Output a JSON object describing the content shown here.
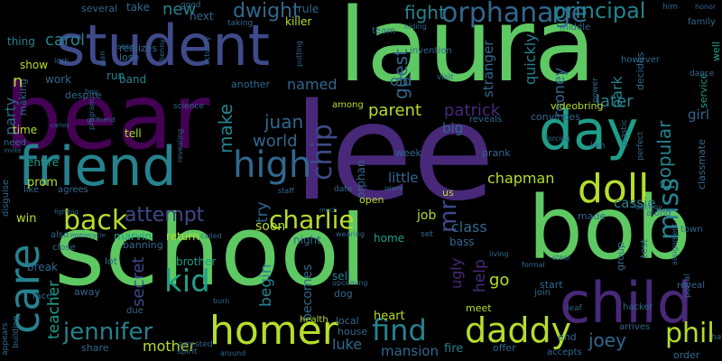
{
  "palette": {
    "green": "#5ec962",
    "purple": "#482878",
    "indigo": "#3e4a89",
    "blue": "#31688e",
    "teal": "#26828e",
    "aqua": "#1f9e89",
    "lime": "#b5de2b",
    "yellow": "#fde725",
    "mint": "#6ece58",
    "grape": "#440154"
  },
  "words": [
    {
      "text": "school",
      "color": "#5ec962"
    },
    {
      "text": "lee",
      "color": "#482878"
    },
    {
      "text": "laura",
      "color": "#5ec962"
    },
    {
      "text": "bear",
      "color": "#440154"
    },
    {
      "text": "student",
      "color": "#3e4a89"
    },
    {
      "text": "bob",
      "color": "#5ec962"
    },
    {
      "text": "friend",
      "color": "#26828e"
    },
    {
      "text": "day",
      "color": "#1f9e89"
    },
    {
      "text": "child",
      "color": "#482878"
    },
    {
      "text": "homer",
      "color": "#b5de2b"
    },
    {
      "text": "care",
      "color": "#26828e"
    },
    {
      "text": "doll",
      "color": "#b5de2b"
    },
    {
      "text": "daddy",
      "color": "#b5de2b"
    },
    {
      "text": "high",
      "color": "#31688e"
    },
    {
      "text": "back",
      "color": "#b5de2b"
    },
    {
      "text": "jennifer",
      "color": "#26828e"
    },
    {
      "text": "charlie",
      "color": "#b5de2b"
    },
    {
      "text": "find",
      "color": "#26828e"
    },
    {
      "text": "phil",
      "color": "#b5de2b"
    },
    {
      "text": "chip",
      "color": "#3e4a89"
    },
    {
      "text": "kid",
      "color": "#1f9e89"
    },
    {
      "text": "miss",
      "color": "#26828e"
    },
    {
      "text": "orphanage",
      "color": "#31688e"
    },
    {
      "text": "attempt",
      "color": "#3e4a89"
    },
    {
      "text": "mr",
      "color": "#3e4a89"
    },
    {
      "text": "principal",
      "color": "#26828e"
    },
    {
      "text": "dwight",
      "color": "#31688e"
    },
    {
      "text": "fight",
      "color": "#26828e"
    },
    {
      "text": "world",
      "color": "#31688e"
    },
    {
      "text": "joey",
      "color": "#31688e"
    },
    {
      "text": "make",
      "color": "#26828e"
    },
    {
      "text": "popular",
      "color": "#26828e"
    },
    {
      "text": "guest",
      "color": "#31688e"
    },
    {
      "text": "juan",
      "color": "#31688e"
    },
    {
      "text": "new",
      "color": "#26828e"
    },
    {
      "text": "carol",
      "color": "#26828e"
    },
    {
      "text": "teacher",
      "color": "#1f9e89"
    },
    {
      "text": "patrick",
      "color": "#482878"
    },
    {
      "text": "parent",
      "color": "#b5de2b"
    },
    {
      "text": "later",
      "color": "#26828e"
    },
    {
      "text": "party",
      "color": "#31688e"
    },
    {
      "text": "secret",
      "color": "#3e4a89"
    },
    {
      "text": "named",
      "color": "#31688e"
    },
    {
      "text": "go",
      "color": "#b5de2b"
    },
    {
      "text": "chapman",
      "color": "#b5de2b"
    },
    {
      "text": "begin",
      "color": "#26828e"
    },
    {
      "text": "try",
      "color": "#31688e"
    },
    {
      "text": "help",
      "color": "#482878"
    },
    {
      "text": "luke",
      "color": "#31688e"
    },
    {
      "text": "mother",
      "color": "#b5de2b"
    },
    {
      "text": "quickly",
      "color": "#26828e"
    },
    {
      "text": "ugly",
      "color": "#482878"
    },
    {
      "text": "park",
      "color": "#26828e"
    },
    {
      "text": "rooney",
      "color": "#31688e"
    },
    {
      "text": "class",
      "color": "#31688e"
    },
    {
      "text": "old",
      "color": "#31688e"
    },
    {
      "text": "stranger",
      "color": "#31688e"
    },
    {
      "text": "little",
      "color": "#31688e"
    },
    {
      "text": "big",
      "color": "#31688e"
    },
    {
      "text": "girl",
      "color": "#31688e"
    },
    {
      "text": "cassie",
      "color": "#26828e"
    },
    {
      "text": "heart",
      "color": "#b5de2b"
    },
    {
      "text": "fire",
      "color": "#26828e"
    },
    {
      "text": "becomes",
      "color": "#31688e"
    },
    {
      "text": "mansion",
      "color": "#31688e"
    },
    {
      "text": "job",
      "color": "#b5de2b"
    },
    {
      "text": "soon",
      "color": "#b5de2b"
    },
    {
      "text": "marvin",
      "color": "#1f9e89"
    },
    {
      "text": "return",
      "color": "#b5de2b"
    },
    {
      "text": "tell",
      "color": "#b5de2b"
    },
    {
      "text": "brother",
      "color": "#1f9e89"
    },
    {
      "text": "sell",
      "color": "#26828e"
    },
    {
      "text": "bass",
      "color": "#31688e"
    },
    {
      "text": "home",
      "color": "#1f9e89"
    },
    {
      "text": "show",
      "color": "#b5de2b"
    },
    {
      "text": "work",
      "color": "#31688e"
    },
    {
      "text": "entire",
      "color": "#1f9e89"
    },
    {
      "text": "prom",
      "color": "#b5de2b"
    },
    {
      "text": "win",
      "color": "#b5de2b"
    },
    {
      "text": "break",
      "color": "#31688e"
    },
    {
      "text": "take",
      "color": "#31688e"
    },
    {
      "text": "next",
      "color": "#31688e"
    },
    {
      "text": "rule",
      "color": "#31688e"
    },
    {
      "text": "killer",
      "color": "#b5de2b"
    },
    {
      "text": "band",
      "color": "#26828e"
    },
    {
      "text": "run",
      "color": "#26828e"
    },
    {
      "text": "another",
      "color": "#31688e"
    },
    {
      "text": "thing",
      "color": "#26828e"
    },
    {
      "text": "time",
      "color": "#b5de2b"
    },
    {
      "text": "making",
      "color": "#31688e"
    },
    {
      "text": "banning",
      "color": "#31688e"
    },
    {
      "text": "lot",
      "color": "#31688e"
    },
    {
      "text": "away",
      "color": "#31688e"
    },
    {
      "text": "share",
      "color": "#31688e"
    },
    {
      "text": "local",
      "color": "#31688e"
    },
    {
      "text": "start",
      "color": "#31688e"
    },
    {
      "text": "end",
      "color": "#31688e"
    },
    {
      "text": "classmate",
      "color": "#31688e"
    },
    {
      "text": "service",
      "color": "#1f9e89"
    },
    {
      "text": "well",
      "color": "#1f9e89"
    },
    {
      "text": "decides",
      "color": "#31688e"
    },
    {
      "text": "offer",
      "color": "#31688e"
    },
    {
      "text": "meet",
      "color": "#b5de2b"
    },
    {
      "text": "order",
      "color": "#31688e"
    },
    {
      "text": "reveal",
      "color": "#31688e"
    },
    {
      "text": "made",
      "color": "#31688e"
    },
    {
      "text": "group",
      "color": "#31688e"
    },
    {
      "text": "test",
      "color": "#31688e"
    },
    {
      "text": "us",
      "color": "#b5de2b"
    },
    {
      "text": "orphan",
      "color": "#31688e"
    },
    {
      "text": "night",
      "color": "#31688e"
    },
    {
      "text": "dog",
      "color": "#31688e"
    },
    {
      "text": "house",
      "color": "#31688e"
    },
    {
      "text": "health",
      "color": "#b5de2b"
    },
    {
      "text": "open",
      "color": "#b5de2b"
    },
    {
      "text": "week",
      "color": "#31688e"
    },
    {
      "text": "prank",
      "color": "#31688e"
    },
    {
      "text": "video",
      "color": "#b5de2b"
    },
    {
      "text": "bring",
      "color": "#b5de2b"
    },
    {
      "text": "convinces",
      "color": "#31688e"
    },
    {
      "text": "reveals",
      "color": "#31688e"
    },
    {
      "text": "among",
      "color": "#b5de2b"
    },
    {
      "text": "lose",
      "color": "#31688e"
    },
    {
      "text": "realizes",
      "color": "#31688e"
    },
    {
      "text": "several",
      "color": "#31688e"
    },
    {
      "text": "despite",
      "color": "#31688e"
    },
    {
      "text": "invention",
      "color": "#31688e"
    },
    {
      "text": "team",
      "color": "#31688e"
    },
    {
      "text": "however",
      "color": "#31688e"
    },
    {
      "text": "middle",
      "color": "#31688e"
    },
    {
      "text": "family",
      "color": "#31688e"
    },
    {
      "text": "hacker",
      "color": "#31688e"
    },
    {
      "text": "accepts",
      "color": "#31688e"
    },
    {
      "text": "arrives",
      "color": "#31688e"
    },
    {
      "text": "along",
      "color": "#31688e"
    },
    {
      "text": "town",
      "color": "#31688e"
    },
    {
      "text": "join",
      "color": "#31688e"
    },
    {
      "text": "n",
      "color": "#b5de2b"
    },
    {
      "text": "close",
      "color": "#31688e"
    },
    {
      "text": "like",
      "color": "#31688e"
    },
    {
      "text": "need",
      "color": "#31688e"
    },
    {
      "text": "agrees",
      "color": "#31688e"
    },
    {
      "text": "disguise",
      "color": "#31688e"
    },
    {
      "text": "face",
      "color": "#31688e"
    },
    {
      "text": "also",
      "color": "#31688e"
    },
    {
      "text": "due",
      "color": "#31688e"
    },
    {
      "text": "arrested",
      "color": "#31688e"
    },
    {
      "text": "spirit",
      "color": "#31688e"
    },
    {
      "text": "good",
      "color": "#31688e"
    },
    {
      "text": "him",
      "color": "#31688e"
    },
    {
      "text": "taking",
      "color": "#31688e"
    },
    {
      "text": "visit",
      "color": "#31688e"
    },
    {
      "text": "appears",
      "color": "#31688e"
    },
    {
      "text": "building",
      "color": "#31688e"
    },
    {
      "text": "leaf",
      "color": "#31688e"
    },
    {
      "text": "set",
      "color": "#31688e"
    },
    {
      "text": "hat",
      "color": "#31688e"
    },
    {
      "text": "kim",
      "color": "#31688e"
    },
    {
      "text": "dance",
      "color": "#31688e"
    },
    {
      "text": "power",
      "color": "#31688e"
    },
    {
      "text": "plastic",
      "color": "#31688e"
    },
    {
      "text": "perfect",
      "color": "#31688e"
    },
    {
      "text": "portal",
      "color": "#31688e"
    },
    {
      "text": "science",
      "color": "#31688e"
    },
    {
      "text": "honor",
      "color": "#31688e"
    },
    {
      "text": "steal",
      "color": "#31688e"
    },
    {
      "text": "living",
      "color": "#31688e"
    },
    {
      "text": "formal",
      "color": "#31688e"
    },
    {
      "text": "date",
      "color": "#31688e"
    },
    {
      "text": "staff",
      "color": "#31688e"
    },
    {
      "text": "burn",
      "color": "#31688e"
    },
    {
      "text": "around",
      "color": "#31688e"
    },
    {
      "text": "boy",
      "color": "#31688e"
    },
    {
      "text": "send",
      "color": "#31688e"
    },
    {
      "text": "plan",
      "color": "#31688e"
    },
    {
      "text": "benny",
      "color": "#31688e"
    },
    {
      "text": "lock",
      "color": "#31688e"
    },
    {
      "text": "putting",
      "color": "#31688e"
    },
    {
      "text": "actually",
      "color": "#31688e"
    },
    {
      "text": "hiding",
      "color": "#31688e"
    },
    {
      "text": "program",
      "color": "#31688e"
    },
    {
      "text": "revealing",
      "color": "#31688e"
    },
    {
      "text": "upcoming",
      "color": "#31688e"
    },
    {
      "text": "wearing",
      "color": "#31688e"
    },
    {
      "text": "destroy",
      "color": "#31688e"
    },
    {
      "text": "assignment",
      "color": "#31688e"
    },
    {
      "text": "forcing",
      "color": "#31688e"
    },
    {
      "text": "motorcycle",
      "color": "#31688e"
    },
    {
      "text": "fighting",
      "color": "#31688e"
    },
    {
      "text": "called",
      "color": "#31688e"
    },
    {
      "text": "island",
      "color": "#31688e"
    },
    {
      "text": "much",
      "color": "#31688e"
    },
    {
      "text": "carlos",
      "color": "#31688e"
    },
    {
      "text": "girlfriend",
      "color": "#31688e"
    },
    {
      "text": "invite",
      "color": "#31688e"
    }
  ]
}
